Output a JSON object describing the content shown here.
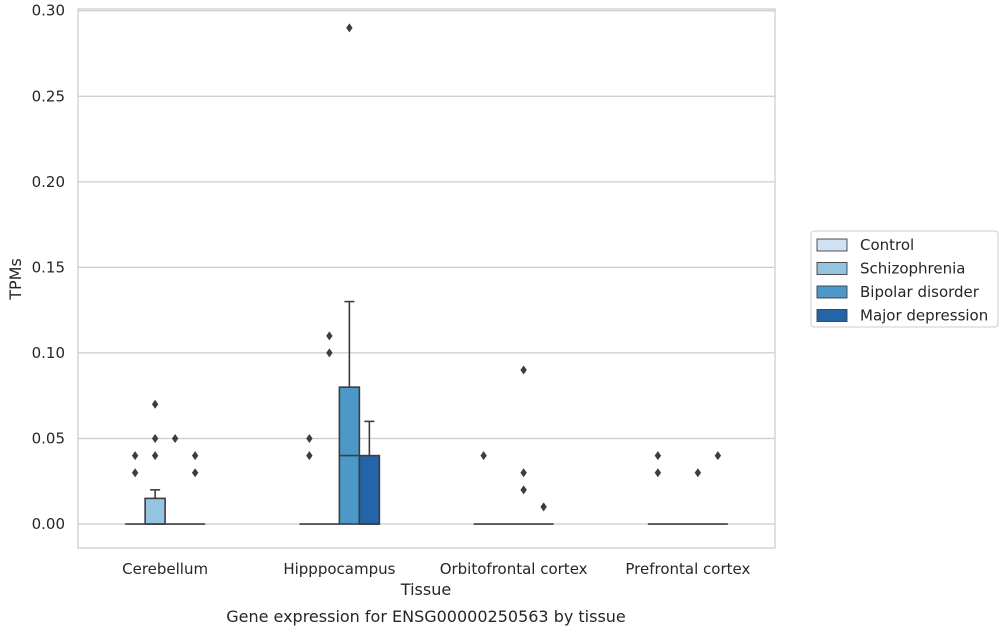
{
  "chart_data": {
    "type": "box",
    "xlabel": "Tissue",
    "ylabel": "TPMs",
    "caption": "Gene expression for ENSG00000250563 by tissue",
    "ylim": [
      -0.014,
      0.301
    ],
    "yticks": [
      "0.00",
      "0.05",
      "0.10",
      "0.15",
      "0.20",
      "0.25",
      "0.30"
    ],
    "grid": "horizontal",
    "legend_position": "right",
    "categories": [
      "Cerebellum",
      "Hipppocampus",
      "Orbitofrontal cortex",
      "Prefrontal cortex"
    ],
    "series": [
      {
        "name": "Control",
        "color": "#d0e1f2",
        "boxes": [
          {
            "category": "Cerebellum",
            "q1": 0,
            "median": 0,
            "q3": 0,
            "whisker_low": 0,
            "whisker_high": 0,
            "outliers": [
              0.03,
              0.04
            ]
          },
          {
            "category": "Hipppocampus",
            "q1": 0,
            "median": 0,
            "q3": 0,
            "whisker_low": 0,
            "whisker_high": 0,
            "outliers": [
              0.04,
              0.05
            ]
          },
          {
            "category": "Orbitofrontal cortex",
            "q1": 0,
            "median": 0,
            "q3": 0,
            "whisker_low": 0,
            "whisker_high": 0,
            "outliers": [
              0.04
            ]
          },
          {
            "category": "Prefrontal cortex",
            "q1": 0,
            "median": 0,
            "q3": 0,
            "whisker_low": 0,
            "whisker_high": 0,
            "outliers": [
              0.03,
              0.04
            ]
          }
        ]
      },
      {
        "name": "Schizophrenia",
        "color": "#94c4df",
        "boxes": [
          {
            "category": "Cerebellum",
            "q1": 0,
            "median": 0,
            "q3": 0.015,
            "whisker_low": 0,
            "whisker_high": 0.02,
            "outliers": [
              0.04,
              0.05,
              0.07
            ]
          },
          {
            "category": "Hipppocampus",
            "q1": 0,
            "median": 0,
            "q3": 0,
            "whisker_low": 0,
            "whisker_high": 0,
            "outliers": [
              0.1,
              0.11
            ]
          },
          {
            "category": "Orbitofrontal cortex",
            "q1": 0,
            "median": 0,
            "q3": 0,
            "whisker_low": 0,
            "whisker_high": 0,
            "outliers": []
          },
          {
            "category": "Prefrontal cortex",
            "q1": 0,
            "median": 0,
            "q3": 0,
            "whisker_low": 0,
            "whisker_high": 0,
            "outliers": []
          }
        ]
      },
      {
        "name": "Bipolar disorder",
        "color": "#4b98c9",
        "boxes": [
          {
            "category": "Cerebellum",
            "q1": 0,
            "median": 0,
            "q3": 0,
            "whisker_low": 0,
            "whisker_high": 0,
            "outliers": [
              0.05
            ]
          },
          {
            "category": "Hipppocampus",
            "q1": 0,
            "median": 0.04,
            "q3": 0.08,
            "whisker_low": 0,
            "whisker_high": 0.13,
            "outliers": [
              0.29
            ]
          },
          {
            "category": "Orbitofrontal cortex",
            "q1": 0,
            "median": 0,
            "q3": 0,
            "whisker_low": 0,
            "whisker_high": 0,
            "outliers": [
              0.02,
              0.03,
              0.09
            ]
          },
          {
            "category": "Prefrontal cortex",
            "q1": 0,
            "median": 0,
            "q3": 0,
            "whisker_low": 0,
            "whisker_high": 0,
            "outliers": [
              0.03
            ]
          }
        ]
      },
      {
        "name": "Major depression",
        "color": "#2464a8",
        "boxes": [
          {
            "category": "Cerebellum",
            "q1": 0,
            "median": 0,
            "q3": 0,
            "whisker_low": 0,
            "whisker_high": 0,
            "outliers": [
              0.03,
              0.04
            ]
          },
          {
            "category": "Hipppocampus",
            "q1": 0,
            "median": 0,
            "q3": 0.04,
            "whisker_low": 0,
            "whisker_high": 0.06,
            "outliers": []
          },
          {
            "category": "Orbitofrontal cortex",
            "q1": 0,
            "median": 0,
            "q3": 0,
            "whisker_low": 0,
            "whisker_high": 0,
            "outliers": [
              0.01
            ]
          },
          {
            "category": "Prefrontal cortex",
            "q1": 0,
            "median": 0,
            "q3": 0,
            "whisker_low": 0,
            "whisker_high": 0,
            "outliers": [
              0.04
            ]
          }
        ]
      }
    ]
  }
}
